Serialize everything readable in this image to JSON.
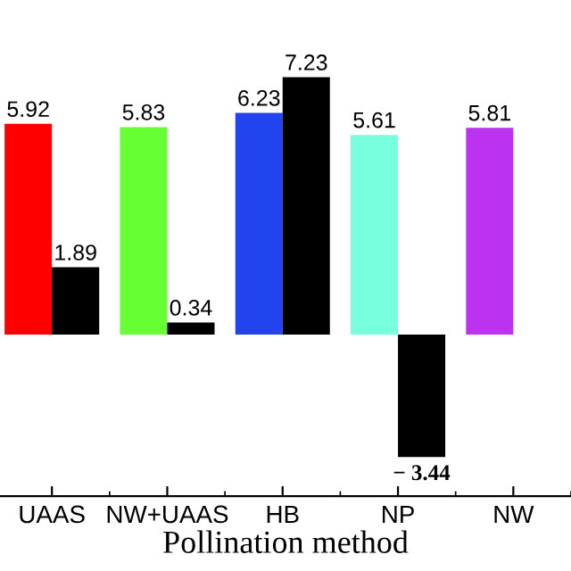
{
  "chart_data": {
    "type": "bar",
    "xlabel": "Pollination method",
    "categories": [
      "UAAS",
      "NW+UAAS",
      "HB",
      "NP",
      "NW"
    ],
    "series": [
      {
        "color": "#ff0000",
        "colors": [
          "#ff0000",
          "#66ff33",
          "#2244ee",
          "#77ffdd",
          "#bb33ee"
        ],
        "values": [
          5.92,
          5.83,
          6.23,
          5.61,
          5.81
        ],
        "value_labels": [
          "5.92",
          "5.83",
          "6.23",
          "5.61",
          "5.81"
        ]
      },
      {
        "color": "#000000",
        "values": [
          1.89,
          0.34,
          7.23,
          -3.44,
          null
        ],
        "value_labels": [
          "1.89",
          "0.34",
          "7.23",
          "− 3.44",
          null
        ]
      }
    ],
    "grid": false,
    "legend": false
  }
}
